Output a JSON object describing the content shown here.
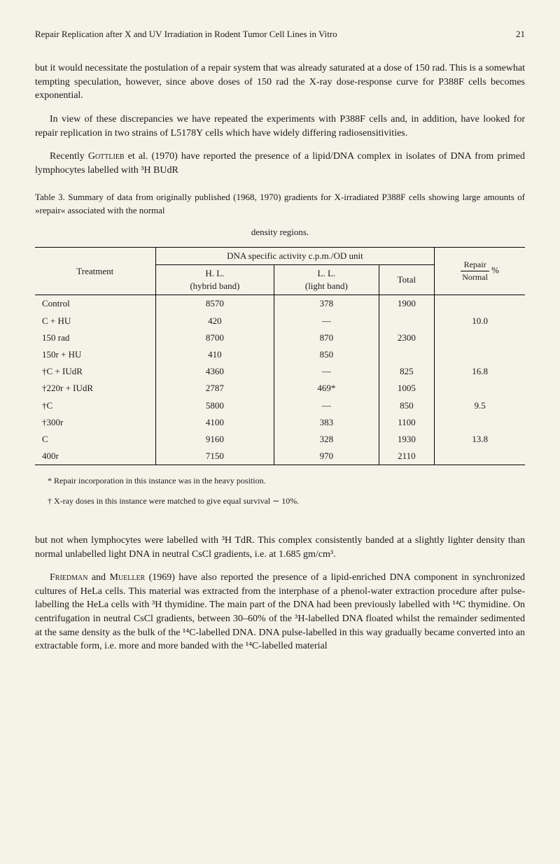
{
  "header": {
    "title": "Repair Replication after X and UV Irradiation in Rodent Tumor Cell Lines in Vitro",
    "page": "21"
  },
  "para1": "but it would necessitate the postulation of a repair system that was already saturated at a dose of 150 rad. This is a somewhat tempting speculation, however, since above doses of 150 rad the X-ray dose-response curve for P388F cells becomes exponential.",
  "para2": "In view of these discrepancies we have repeated the experiments with P388F cells and, in addition, have looked for repair replication in two strains of L5178Y cells which have widely differing radiosensitivities.",
  "para3_a": "Recently ",
  "para3_gottlieb": "Gottlieb",
  "para3_b": " et al. (1970) have reported the presence of a lipid/DNA complex in isolates of DNA from primed lymphocytes labelled with ³H BUdR",
  "table_caption": "Table 3. Summary of data from originally published (1968, 1970) gradients for X-irradiated P388F cells showing large amounts of »repair« associated with the normal",
  "table_caption2": "density regions.",
  "table": {
    "col_treatment": "Treatment",
    "col_dna": "DNA specific activity c.p.m./OD unit",
    "col_hl": "H. L.",
    "col_hl2": "(hybrid band)",
    "col_ll": "L. L.",
    "col_ll2": "(light band)",
    "col_total": "Total",
    "col_repair": "Repair",
    "col_normal": "Normal",
    "col_pct": "%",
    "rows": [
      {
        "t": "Control",
        "hl": "8570",
        "ll": "378",
        "total": "1900",
        "rn": ""
      },
      {
        "t": "C + HU",
        "hl": "420",
        "ll": "—",
        "total": "",
        "rn": "10.0"
      },
      {
        "t": "150 rad",
        "hl": "8700",
        "ll": "870",
        "total": "2300",
        "rn": ""
      },
      {
        "t": "150r + HU",
        "hl": "410",
        "ll": "850",
        "total": "",
        "rn": ""
      },
      {
        "t": "†C + IUdR",
        "hl": "4360",
        "ll": "—",
        "total": "825",
        "rn": "16.8"
      },
      {
        "t": "†220r + IUdR",
        "hl": "2787",
        "ll": "469*",
        "total": "1005",
        "rn": ""
      },
      {
        "t": "†C",
        "hl": "5800",
        "ll": "—",
        "total": "850",
        "rn": "9.5"
      },
      {
        "t": "†300r",
        "hl": "4100",
        "ll": "383",
        "total": "1100",
        "rn": ""
      },
      {
        "t": "C",
        "hl": "9160",
        "ll": "328",
        "total": "1930",
        "rn": "13.8"
      },
      {
        "t": "400r",
        "hl": "7150",
        "ll": "970",
        "total": "2110",
        "rn": ""
      }
    ]
  },
  "footnote1": "* Repair incorporation in this instance was in the heavy position.",
  "footnote2": "† X-ray doses in this instance were matched to give equal survival ∼ 10%.",
  "para4": "but not when lymphocytes were labelled with ³H TdR. This complex consistently banded at a slightly lighter density than normal unlabelled light DNA in neutral CsCl gradients, i.e. at 1.685 gm/cm³.",
  "para5_friedman": "Friedman",
  "para5_and": " and ",
  "para5_mueller": "Mueller",
  "para5_rest": " (1969) have also reported the presence of a lipid-enriched DNA component in synchronized cultures of HeLa cells. This material was extracted from the interphase of a phenol-water extraction procedure after pulse-labelling the HeLa cells with ³H thymidine. The main part of the DNA had been previously labelled with ¹⁴C thymidine. On centrifugation in neutral CsCl gradients, between 30–60% of the ³H-labelled DNA floated whilst the remainder sedimented at the same density as the bulk of the ¹⁴C-labelled DNA. DNA pulse-labelled in this way gradually became converted into an extractable form, i.e. more and more banded with the ¹⁴C-labelled material"
}
